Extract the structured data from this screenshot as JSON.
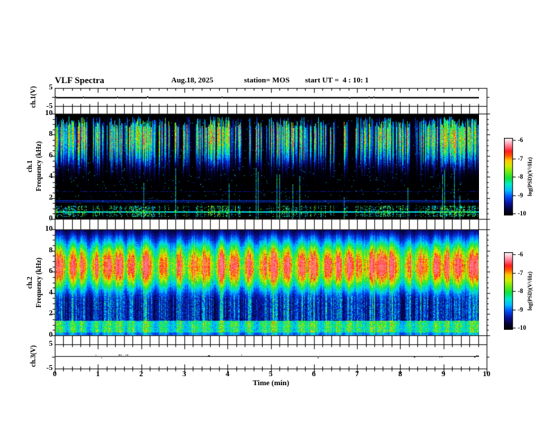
{
  "header": {
    "title": "VLF Spectra",
    "date": "Aug.18, 2025",
    "station": "station= MOS",
    "start_ut": "start UT =  4 : 10: 1"
  },
  "axis": {
    "time_label": "Time (min)",
    "x_ticks": [
      "0",
      "1",
      "2",
      "3",
      "4",
      "5",
      "6",
      "7",
      "8",
      "9",
      "10"
    ],
    "freq_ticks": [
      "10",
      "8",
      "6",
      "4",
      "2",
      "0"
    ],
    "volt_max": "5",
    "volt_min": "-5"
  },
  "labels": {
    "ch1_volt": "ch.1(V)",
    "ch3_volt": "ch.3(V)",
    "ch1": "ch.1",
    "ch2": "ch.2",
    "freq_axis": "Frequency (kHz)",
    "psd_unit": "log(PSD)(V²/Hz)",
    "cbar_ticks": [
      "-6",
      "-7",
      "-8",
      "-9",
      "-10"
    ]
  },
  "colorbar": {
    "label": "log(PSD)(V²/Hz)",
    "ticks": [
      -6,
      -7,
      -8,
      -9,
      -10
    ],
    "value_range": [
      -10,
      -6
    ],
    "colors_bottom_to_top": [
      "#000000",
      "#0000a0",
      "#00aaff",
      "#00ffff",
      "#00cc00",
      "#ffff00",
      "#ff2200",
      "#ff99bb",
      "#ffffff"
    ]
  },
  "chart_data": [
    {
      "type": "line",
      "name": "ch.1 voltage trace",
      "ylabel": "ch.1(V)",
      "ylim": [
        -5,
        5
      ],
      "yticks": [
        5,
        -5
      ],
      "xlim": [
        0,
        10
      ],
      "x_data_end": 9.8,
      "values": "constant 0 V over 0 - 9.8 min",
      "line_value": 0
    },
    {
      "type": "heatmap",
      "name": "ch.1 spectrogram",
      "ylabel": "ch.1 Frequency (kHz)",
      "ylim": [
        0,
        10
      ],
      "yticks": [
        0,
        2,
        4,
        6,
        8,
        10
      ],
      "xlim": [
        0,
        10
      ],
      "xlabel": "Time (min)",
      "x_data_end": 9.8,
      "value_range": [
        -10,
        -6
      ],
      "impulse_band_khz": [
        2.8,
        9.7
      ],
      "impulse_peak_khz": 7.6,
      "carrier_line_khz": 0.66,
      "weak_lines_khz": [
        1.62,
        1.78,
        2.62
      ],
      "bottom_speckle_band_khz": [
        0.2,
        1.25
      ],
      "description": "black background, dense vertical sferic streaks mostly 3-9.5 kHz (green/yellow, some red cores), bright cyan-green horizontal carrier line near 0.66 kHz, faint blue lines near 1.6-1.8 and 2.6 kHz"
    },
    {
      "type": "heatmap",
      "name": "ch.2 spectrogram",
      "ylabel": "ch.2 Frequency (kHz)",
      "ylim": [
        0,
        10
      ],
      "yticks": [
        0,
        2,
        4,
        6,
        8,
        10
      ],
      "xlim": [
        0,
        10
      ],
      "xlabel": "Time (min)",
      "x_data_end": 9.8,
      "value_range": [
        -10,
        -6
      ],
      "main_band_khz": [
        4.5,
        8.6
      ],
      "band_center_khz": 6.55,
      "band_sigma_khz": 1.5,
      "blob_period_min": 0.3,
      "carrier_line_khz": 0.92,
      "weak_lines_khz": [
        1.65,
        2.6,
        3.15
      ],
      "description": "continuous bright emission band centred near 6.5 kHz (green/yellow) with quasi-periodic red cores every ~0.3 min, blue impulsive noise extending 0-10 kHz"
    },
    {
      "type": "line",
      "name": "ch.3 voltage trace",
      "ylabel": "ch.3(V)",
      "ylim": [
        -5,
        5
      ],
      "yticks": [
        5,
        -5
      ],
      "xlim": [
        0,
        10
      ],
      "x_data_end": 9.8,
      "values": "near-constant 0 V with tiny noise blips",
      "line_value": 0
    }
  ]
}
